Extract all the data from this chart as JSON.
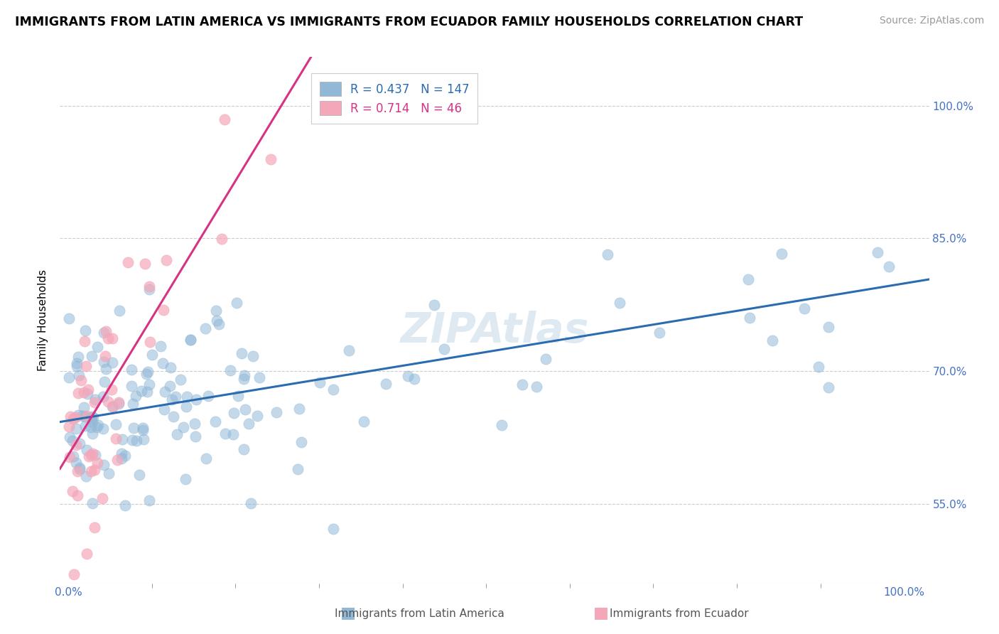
{
  "title": "IMMIGRANTS FROM LATIN AMERICA VS IMMIGRANTS FROM ECUADOR FAMILY HOUSEHOLDS CORRELATION CHART",
  "source": "Source: ZipAtlas.com",
  "ylabel": "Family Households",
  "y_tick_values": [
    0.55,
    0.7,
    0.85,
    1.0
  ],
  "xlim": [
    -0.01,
    1.03
  ],
  "ylim": [
    0.46,
    1.055
  ],
  "blue_color": "#92b8d8",
  "blue_line_color": "#2b6cb0",
  "pink_color": "#f4a7b9",
  "pink_line_color": "#d63384",
  "blue_R": 0.437,
  "blue_N": 147,
  "pink_R": 0.714,
  "pink_N": 46,
  "legend_label_blue": "Immigrants from Latin America",
  "legend_label_pink": "Immigrants from Ecuador",
  "watermark": "ZIPAtlas",
  "title_fontsize": 12.5,
  "source_fontsize": 10,
  "axis_label_fontsize": 11,
  "legend_fontsize": 12,
  "tick_fontsize": 11,
  "blue_line_intercept": 0.644,
  "blue_line_slope": 0.155,
  "pink_line_intercept": 0.605,
  "pink_line_slope": 1.55,
  "grid_color": "#cccccc"
}
